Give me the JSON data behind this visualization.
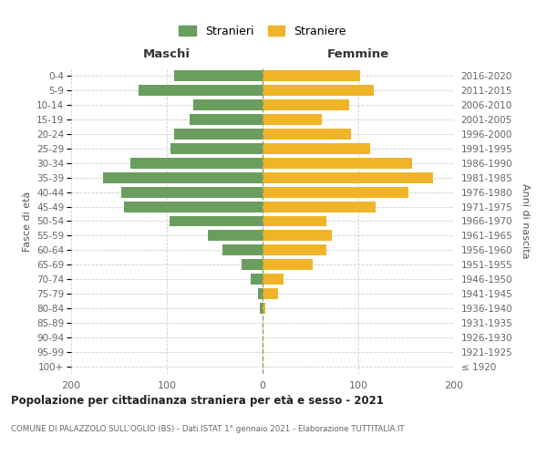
{
  "age_groups": [
    "100+",
    "95-99",
    "90-94",
    "85-89",
    "80-84",
    "75-79",
    "70-74",
    "65-69",
    "60-64",
    "55-59",
    "50-54",
    "45-49",
    "40-44",
    "35-39",
    "30-34",
    "25-29",
    "20-24",
    "15-19",
    "10-14",
    "5-9",
    "0-4"
  ],
  "birth_years": [
    "≤ 1920",
    "1921-1925",
    "1926-1930",
    "1931-1935",
    "1936-1940",
    "1941-1945",
    "1946-1950",
    "1951-1955",
    "1956-1960",
    "1961-1965",
    "1966-1970",
    "1971-1975",
    "1976-1980",
    "1981-1985",
    "1986-1990",
    "1991-1995",
    "1996-2000",
    "2001-2005",
    "2006-2010",
    "2011-2015",
    "2016-2020"
  ],
  "maschi": [
    0,
    0,
    0,
    0,
    3,
    5,
    12,
    22,
    42,
    57,
    97,
    145,
    148,
    167,
    138,
    96,
    92,
    76,
    72,
    130,
    92
  ],
  "femmine": [
    0,
    0,
    0,
    0,
    3,
    16,
    22,
    52,
    67,
    72,
    67,
    118,
    152,
    178,
    156,
    112,
    92,
    62,
    90,
    116,
    102
  ],
  "male_color": "#6a9e5e",
  "female_color": "#f0b429",
  "background_color": "#ffffff",
  "grid_color": "#d0d0d0",
  "title": "Popolazione per cittadinanza straniera per età e sesso - 2021",
  "subtitle": "COMUNE DI PALAZZOLO SULL'OGLIO (BS) - Dati ISTAT 1° gennaio 2021 - Elaborazione TUTTITALIA.IT",
  "xlabel_left": "Maschi",
  "xlabel_right": "Femmine",
  "ylabel_left": "Fasce di età",
  "ylabel_right": "Anni di nascita",
  "legend_male": "Stranieri",
  "legend_female": "Straniere",
  "xlim": 200,
  "bar_height": 0.75
}
